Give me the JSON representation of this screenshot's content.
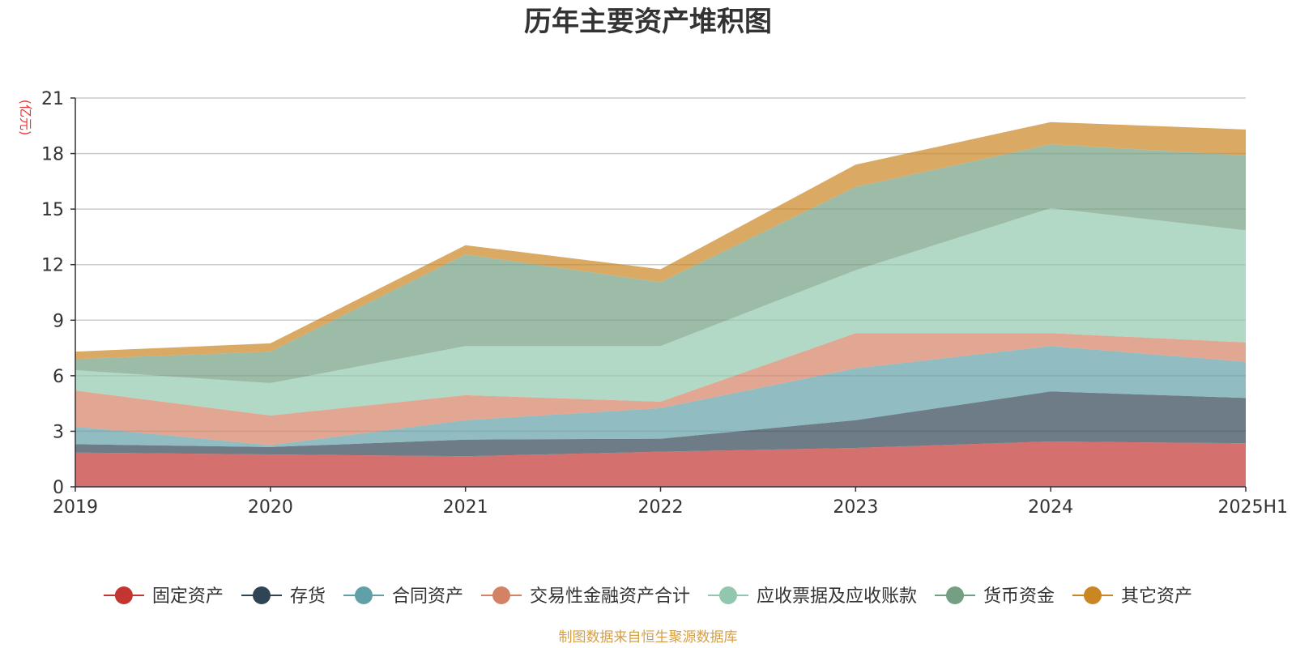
{
  "chart_data": {
    "type": "area",
    "stacked": true,
    "title": "历年主要资产堆积图",
    "y_unit": "(亿元)",
    "categories": [
      "2019",
      "2020",
      "2021",
      "2022",
      "2023",
      "2024",
      "2025H1"
    ],
    "ylim": [
      0,
      21
    ],
    "yticks": [
      0,
      3,
      6,
      9,
      12,
      15,
      18,
      21
    ],
    "grid": true,
    "legend_position": "bottom",
    "series": [
      {
        "name": "固定资产",
        "color": "#c23531",
        "values": [
          1.85,
          1.75,
          1.65,
          1.9,
          2.1,
          2.45,
          2.35
        ]
      },
      {
        "name": "存货",
        "color": "#2f4554",
        "values": [
          0.45,
          0.4,
          0.9,
          0.7,
          1.5,
          2.7,
          2.45
        ]
      },
      {
        "name": "合同资产",
        "color": "#61a0a8",
        "values": [
          0.95,
          0.1,
          1.05,
          1.65,
          2.8,
          2.45,
          1.95
        ]
      },
      {
        "name": "交易性金融资产合计",
        "color": "#d48265",
        "values": [
          1.95,
          1.6,
          1.35,
          0.35,
          1.9,
          0.7,
          1.05
        ]
      },
      {
        "name": "应收票据及应收账款",
        "color": "#91c7ae",
        "values": [
          1.1,
          1.75,
          2.65,
          3.0,
          3.4,
          6.75,
          6.05
        ]
      },
      {
        "name": "货币资金",
        "color": "#749f83",
        "values": [
          0.6,
          1.7,
          4.95,
          3.45,
          4.5,
          3.45,
          4.05
        ]
      },
      {
        "name": "其它资产",
        "color": "#ca8622",
        "values": [
          0.4,
          0.45,
          0.5,
          0.7,
          1.2,
          1.2,
          1.4
        ]
      }
    ]
  },
  "footer": {
    "source": "制图数据来自恒生聚源数据库"
  }
}
